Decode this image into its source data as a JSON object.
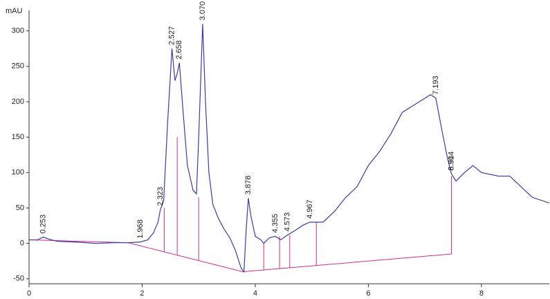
{
  "chart_data": {
    "type": "line",
    "y_axis_label": "mAU",
    "color": "#3c3c9c",
    "integration_color": "#d02c8c",
    "xlim": [
      0,
      9.2
    ],
    "ylim": [
      -57,
      329
    ],
    "xticks": [
      0,
      2,
      4,
      6,
      8
    ],
    "yticks": [
      -50,
      0,
      50,
      100,
      150,
      200,
      250,
      300
    ],
    "x": [
      0,
      0.15,
      0.253,
      0.35,
      0.5,
      0.8,
      1.0,
      1.2,
      1.5,
      1.75,
      1.968,
      2.1,
      2.2,
      2.28,
      2.323,
      2.38,
      2.45,
      2.527,
      2.58,
      2.62,
      2.658,
      2.72,
      2.8,
      2.9,
      2.96,
      3.0,
      3.07,
      3.12,
      3.18,
      3.25,
      3.35,
      3.45,
      3.55,
      3.65,
      3.75,
      3.8,
      3.84,
      3.878,
      3.92,
      4.0,
      4.1,
      4.15,
      4.25,
      4.355,
      4.45,
      4.573,
      4.7,
      4.85,
      4.967,
      5.1,
      5.2,
      5.4,
      5.6,
      5.8,
      6.0,
      6.2,
      6.4,
      6.6,
      6.8,
      7.0,
      7.1,
      7.193,
      7.3,
      7.4,
      7.47,
      7.55,
      7.7,
      7.85,
      8.0,
      8.3,
      8.5,
      8.7,
      8.9,
      9.2
    ],
    "values": [
      5,
      5,
      9,
      6,
      3,
      2,
      1,
      0,
      1,
      1,
      2,
      5,
      15,
      30,
      48,
      60,
      170,
      275,
      230,
      240,
      255,
      190,
      110,
      75,
      70,
      150,
      310,
      200,
      100,
      55,
      35,
      20,
      8,
      -10,
      -35,
      -40,
      20,
      64,
      40,
      10,
      5,
      0,
      8,
      10,
      5,
      12,
      18,
      26,
      30,
      30,
      30,
      45,
      65,
      80,
      110,
      130,
      155,
      185,
      195,
      205,
      210,
      205,
      160,
      120,
      98,
      88,
      100,
      110,
      100,
      95,
      95,
      80,
      65,
      57
    ],
    "baseline": {
      "x": [
        0,
        1.75,
        3.78,
        7.47
      ],
      "y": [
        5,
        1,
        -40,
        -15
      ]
    },
    "drop_lines": {
      "x": [
        2.39,
        2.62,
        3.0,
        4.15,
        4.43,
        4.61,
        5.08,
        7.47
      ],
      "y": [
        50,
        150,
        65,
        0,
        10,
        12,
        30,
        95
      ]
    },
    "annotations": [
      {
        "x": 0.253,
        "y": 9,
        "label": "0.253"
      },
      {
        "x": 1.968,
        "y": 2,
        "label": "1.968"
      },
      {
        "x": 2.323,
        "y": 48,
        "label": "2.323"
      },
      {
        "x": 2.527,
        "y": 275,
        "label": "2.527"
      },
      {
        "x": 2.658,
        "y": 255,
        "label": "2.658"
      },
      {
        "x": 3.07,
        "y": 310,
        "label": "3.070"
      },
      {
        "x": 3.878,
        "y": 64,
        "label": "3.878"
      },
      {
        "x": 4.355,
        "y": 10,
        "label": "4.355"
      },
      {
        "x": 4.573,
        "y": 12,
        "label": "4.573"
      },
      {
        "x": 4.967,
        "y": 30,
        "label": "4.967"
      },
      {
        "x": 7.193,
        "y": 205,
        "label": "7.193"
      },
      {
        "x": 7.47,
        "y": 98,
        "label": "8.51"
      },
      {
        "x": 7.47,
        "y": 98,
        "label": "8.904"
      }
    ]
  }
}
